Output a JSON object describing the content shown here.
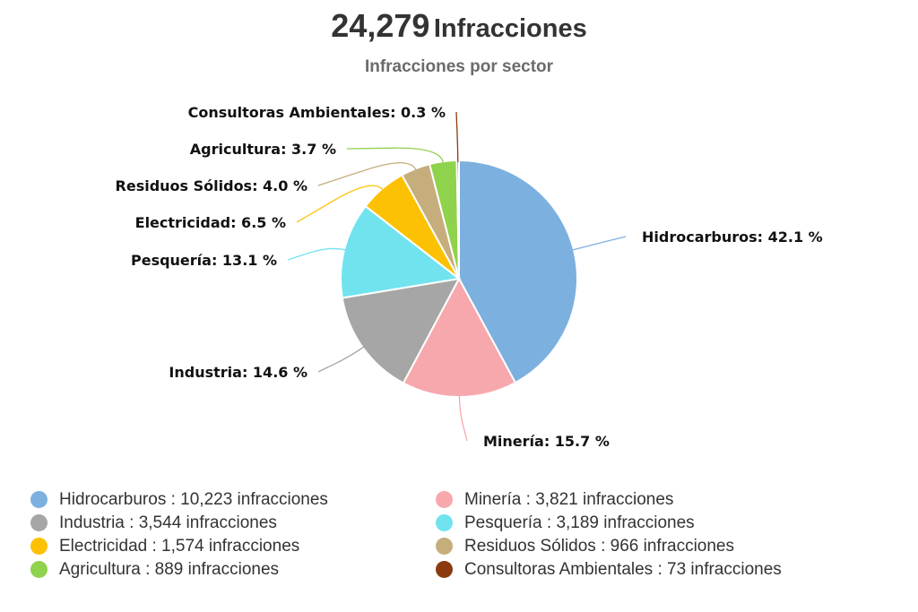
{
  "header": {
    "total_value": "24,279",
    "total_label": "Infracciones"
  },
  "chart_data": {
    "type": "pie",
    "subtitle": "Infracciones por sector",
    "slices": [
      {
        "label": "Hidrocarburos",
        "pct": 42.1,
        "pct_label": "Hidrocarburos: 42.1 %",
        "count": 10223,
        "legend": "Hidrocarburos : 10,223 infracciones",
        "color": "#7cb0df"
      },
      {
        "label": "Minería",
        "pct": 15.7,
        "pct_label": "Minería: 15.7 %",
        "count": 3821,
        "legend": "Minería : 3,821 infracciones",
        "color": "#f7a8ad"
      },
      {
        "label": "Industria",
        "pct": 14.6,
        "pct_label": "Industria: 14.6 %",
        "count": 3544,
        "legend": "Industria : 3,544 infracciones",
        "color": "#a6a6a6"
      },
      {
        "label": "Pesquería",
        "pct": 13.1,
        "pct_label": "Pesquería: 13.1 %",
        "count": 3189,
        "legend": "Pesquería : 3,189 infracciones",
        "color": "#71e3ef"
      },
      {
        "label": "Electricidad",
        "pct": 6.5,
        "pct_label": "Electricidad: 6.5 %",
        "count": 1574,
        "legend": "Electricidad : 1,574 infracciones",
        "color": "#fcc102"
      },
      {
        "label": "Residuos Sólidos",
        "pct": 4.0,
        "pct_label": "Residuos Sólidos: 4.0 %",
        "count": 966,
        "legend": "Residuos Sólidos : 966 infracciones",
        "color": "#c6ad7c"
      },
      {
        "label": "Agricultura",
        "pct": 3.7,
        "pct_label": "Agricultura: 3.7 %",
        "count": 889,
        "legend": "Agricultura : 889 infracciones",
        "color": "#8fd24c"
      },
      {
        "label": "Consultoras Ambientales",
        "pct": 0.3,
        "pct_label": "Consultoras Ambientales: 0.3 %",
        "count": 73,
        "legend": "Consultoras Ambientales : 73 infracciones",
        "color": "#8b3a0f"
      }
    ],
    "legend_order": [
      0,
      1,
      2,
      3,
      4,
      5,
      6,
      7
    ]
  }
}
